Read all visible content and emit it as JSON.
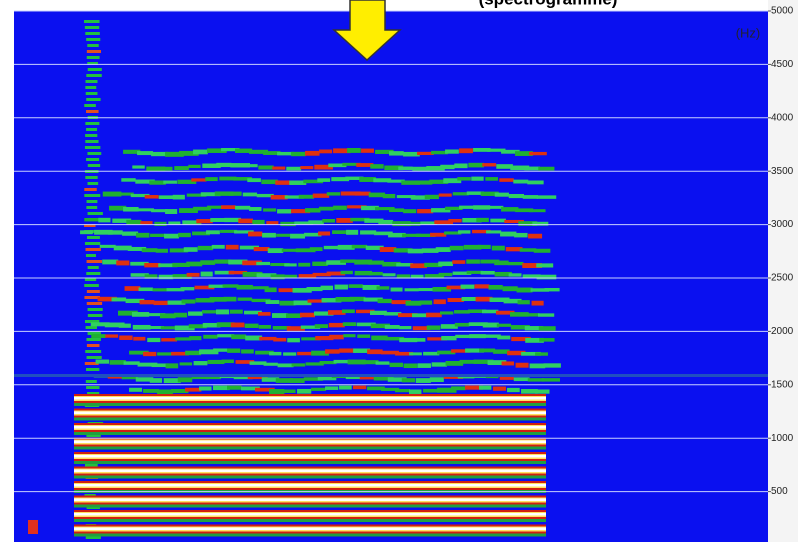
{
  "chart_data": {
    "type": "spectrogram",
    "title": "(spectrogramme)",
    "y_unit": "(Hz)",
    "ylim": [
      0,
      5000
    ],
    "yticks": [
      500,
      1000,
      1500,
      2000,
      2500,
      3000,
      3500,
      4000,
      4500,
      5000
    ],
    "grid": true
  }
}
